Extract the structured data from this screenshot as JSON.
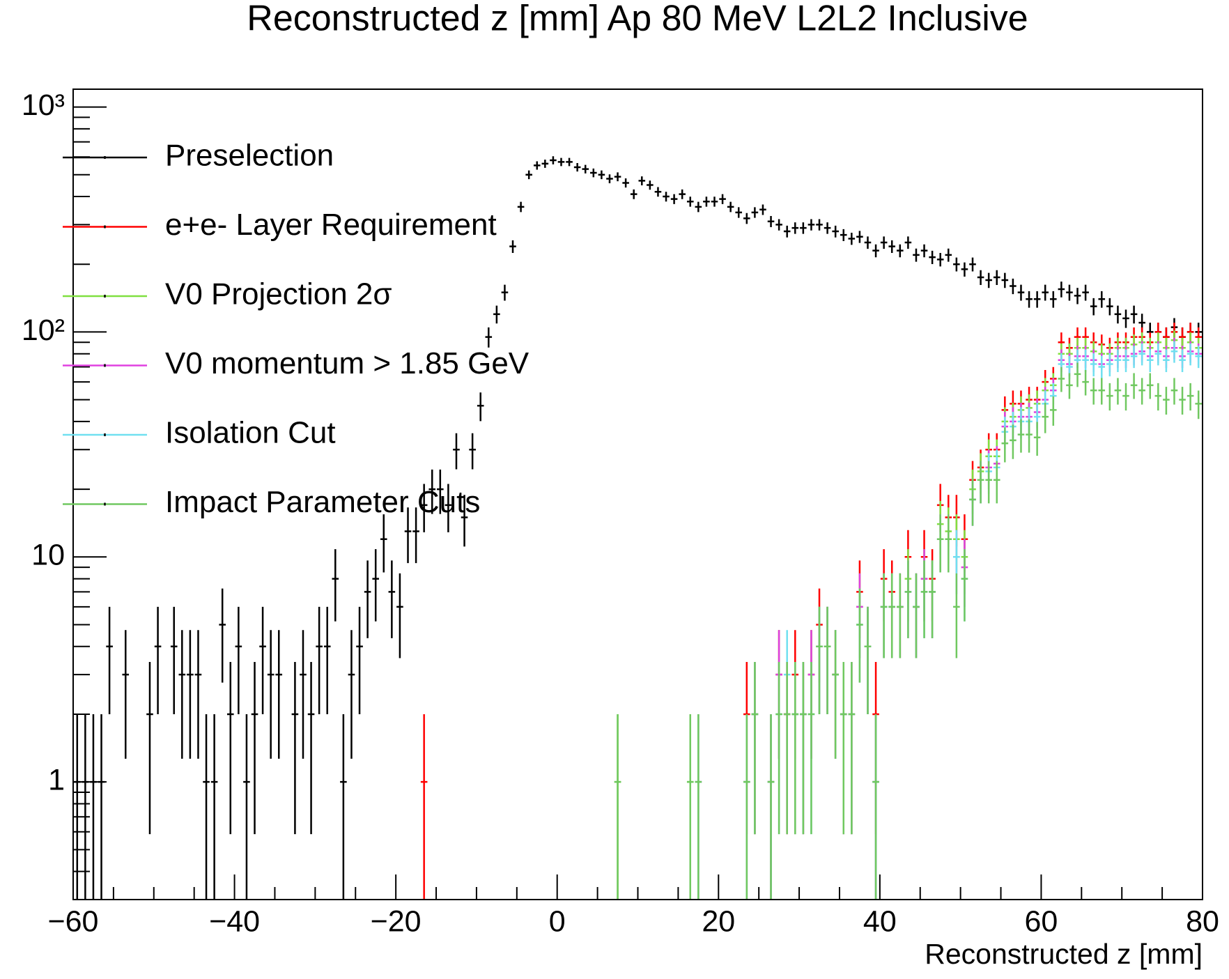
{
  "chart_data": {
    "type": "histogram",
    "title": "Reconstructed z [mm] Ap 80 MeV L2L2 Inclusive",
    "x_label": "Reconstructed z [mm]",
    "ylog": true,
    "legend": "top-left",
    "xlim": [
      -60,
      80
    ],
    "ylim": [
      0.3,
      1200
    ],
    "xticks": [
      {
        "value": -60,
        "label": "−60"
      },
      {
        "value": -40,
        "label": "−40"
      },
      {
        "value": -20,
        "label": "−20"
      },
      0,
      20,
      40,
      60,
      80
    ],
    "yticks": [
      1,
      10,
      {
        "value": 100,
        "label": "10²"
      },
      {
        "value": 1000,
        "label": "10³"
      }
    ],
    "bins": [
      -60,
      -59,
      -58,
      -57,
      -56,
      -55,
      -54,
      -53,
      -52,
      -51,
      -50,
      -49,
      -48,
      -47,
      -46,
      -45,
      -44,
      -43,
      -42,
      -41,
      -40,
      -39,
      -38,
      -37,
      -36,
      -35,
      -34,
      -33,
      -32,
      -31,
      -30,
      -29,
      -28,
      -27,
      -26,
      -25,
      -24,
      -23,
      -22,
      -21,
      -20,
      -19,
      -18,
      -17,
      -16,
      -15,
      -14,
      -13,
      -12,
      -11,
      -10,
      -9,
      -8,
      -7,
      -6,
      -5,
      -4,
      -3,
      -2,
      -1,
      0,
      1,
      2,
      3,
      4,
      5,
      6,
      7,
      8,
      9,
      10,
      11,
      12,
      13,
      14,
      15,
      16,
      17,
      18,
      19,
      20,
      21,
      22,
      23,
      24,
      25,
      26,
      27,
      28,
      29,
      30,
      31,
      32,
      33,
      34,
      35,
      36,
      37,
      38,
      39,
      40,
      41,
      42,
      43,
      44,
      45,
      46,
      47,
      48,
      49,
      50,
      51,
      52,
      53,
      54,
      55,
      56,
      57,
      58,
      59,
      60,
      61,
      62,
      63,
      64,
      65,
      66,
      67,
      68,
      69,
      70,
      71,
      72,
      73,
      74,
      75,
      76,
      77,
      78,
      79,
      80
    ],
    "series": [
      {
        "name": "Preselection",
        "color": "#000000",
        "values": [
          1,
          1,
          1,
          1,
          4,
          null,
          3,
          null,
          null,
          2,
          4,
          null,
          4,
          3,
          3,
          3,
          1,
          1,
          5,
          2,
          4,
          1,
          2,
          4,
          3,
          3,
          null,
          2,
          3,
          2,
          4,
          4,
          8,
          1,
          3,
          4,
          7,
          8,
          12,
          7,
          6,
          13,
          13,
          17,
          20,
          20,
          17,
          30,
          15,
          30,
          47,
          95,
          120,
          150,
          240,
          360,
          500,
          550,
          560,
          580,
          570,
          570,
          540,
          530,
          510,
          500,
          480,
          490,
          460,
          410,
          470,
          450,
          420,
          400,
          390,
          410,
          380,
          360,
          380,
          380,
          390,
          360,
          340,
          320,
          340,
          350,
          310,
          300,
          280,
          290,
          290,
          300,
          300,
          290,
          280,
          270,
          260,
          265,
          250,
          230,
          250,
          240,
          230,
          250,
          220,
          230,
          215,
          210,
          220,
          200,
          190,
          200,
          175,
          170,
          175,
          170,
          160,
          150,
          140,
          140,
          150,
          140,
          155,
          150,
          145,
          150,
          130,
          140,
          130,
          120,
          115,
          120,
          110,
          100,
          100,
          95,
          105,
          95,
          100,
          100
        ]
      },
      {
        "name": "e+e- Layer Requirement",
        "color": "#ff0000",
        "values": [
          null,
          null,
          null,
          null,
          null,
          null,
          null,
          null,
          null,
          null,
          null,
          null,
          null,
          null,
          null,
          null,
          null,
          null,
          null,
          null,
          null,
          null,
          null,
          null,
          null,
          null,
          null,
          null,
          null,
          null,
          null,
          null,
          null,
          null,
          null,
          null,
          null,
          null,
          null,
          null,
          null,
          null,
          null,
          1,
          null,
          null,
          null,
          null,
          null,
          null,
          null,
          null,
          null,
          null,
          null,
          null,
          null,
          null,
          null,
          null,
          null,
          null,
          null,
          null,
          null,
          null,
          null,
          null,
          null,
          null,
          null,
          null,
          null,
          null,
          null,
          null,
          null,
          null,
          null,
          null,
          null,
          null,
          null,
          2,
          2,
          null,
          1,
          3,
          2,
          3,
          2,
          3,
          5,
          4,
          3,
          2,
          2,
          7,
          4,
          2,
          8,
          7,
          6,
          10,
          6,
          10,
          8,
          17,
          15,
          15,
          12,
          22,
          25,
          30,
          30,
          45,
          48,
          48,
          50,
          50,
          60,
          62,
          90,
          85,
          95,
          95,
          90,
          88,
          85,
          90,
          90,
          95,
          95,
          90,
          100,
          95,
          100,
          95,
          100,
          95
        ]
      },
      {
        "name": "V0 Projection 2σ",
        "color": "#80e040",
        "values": [
          null,
          null,
          null,
          null,
          null,
          null,
          null,
          null,
          null,
          null,
          null,
          null,
          null,
          null,
          null,
          null,
          null,
          null,
          null,
          null,
          null,
          null,
          null,
          null,
          null,
          null,
          null,
          null,
          null,
          null,
          null,
          null,
          null,
          null,
          null,
          null,
          null,
          null,
          null,
          null,
          null,
          null,
          null,
          null,
          null,
          null,
          null,
          null,
          null,
          null,
          null,
          null,
          null,
          null,
          null,
          null,
          null,
          null,
          null,
          null,
          null,
          null,
          null,
          null,
          null,
          null,
          null,
          1,
          null,
          null,
          null,
          null,
          null,
          null,
          null,
          null,
          1,
          1,
          null,
          null,
          null,
          null,
          null,
          1,
          2,
          null,
          1,
          3,
          2,
          2,
          2,
          3,
          4,
          4,
          3,
          2,
          2,
          6,
          4,
          1,
          6,
          6,
          6,
          8,
          6,
          8,
          7,
          14,
          13,
          12,
          10,
          20,
          24,
          28,
          28,
          40,
          42,
          45,
          46,
          48,
          55,
          58,
          80,
          80,
          85,
          85,
          82,
          80,
          80,
          85,
          85,
          88,
          90,
          85,
          90,
          85,
          92,
          85,
          90,
          85
        ]
      },
      {
        "name": "V0 momentum > 1.85 GeV",
        "color": "#e040e0",
        "values": [
          null,
          null,
          null,
          null,
          null,
          null,
          null,
          null,
          null,
          null,
          null,
          null,
          null,
          null,
          null,
          null,
          null,
          null,
          null,
          null,
          null,
          null,
          null,
          null,
          null,
          null,
          null,
          null,
          null,
          null,
          null,
          null,
          null,
          null,
          null,
          null,
          null,
          null,
          null,
          null,
          null,
          null,
          null,
          null,
          null,
          null,
          null,
          null,
          null,
          null,
          null,
          null,
          null,
          null,
          null,
          null,
          null,
          null,
          null,
          null,
          null,
          null,
          null,
          null,
          null,
          null,
          null,
          null,
          null,
          null,
          null,
          null,
          null,
          null,
          null,
          null,
          null,
          1,
          null,
          null,
          null,
          null,
          null,
          1,
          2,
          null,
          1,
          3,
          2,
          2,
          2,
          3,
          4,
          4,
          3,
          2,
          2,
          6,
          4,
          1,
          6,
          6,
          6,
          7,
          6,
          8,
          7,
          12,
          12,
          10,
          9,
          18,
          22,
          25,
          26,
          38,
          40,
          42,
          42,
          44,
          50,
          55,
          75,
          72,
          78,
          78,
          75,
          72,
          75,
          78,
          78,
          80,
          82,
          78,
          82,
          78,
          85,
          78,
          82,
          80
        ]
      },
      {
        "name": "Isolation Cut",
        "color": "#70e0f0",
        "values": [
          null,
          null,
          null,
          null,
          null,
          null,
          null,
          null,
          null,
          null,
          null,
          null,
          null,
          null,
          null,
          null,
          null,
          null,
          null,
          null,
          null,
          null,
          null,
          null,
          null,
          null,
          null,
          null,
          null,
          null,
          null,
          null,
          null,
          null,
          null,
          null,
          null,
          null,
          null,
          null,
          null,
          null,
          null,
          null,
          null,
          null,
          null,
          null,
          null,
          null,
          null,
          null,
          null,
          null,
          null,
          null,
          null,
          null,
          null,
          null,
          null,
          null,
          null,
          null,
          null,
          null,
          null,
          null,
          null,
          null,
          null,
          null,
          null,
          null,
          null,
          null,
          null,
          1,
          null,
          null,
          null,
          null,
          null,
          1,
          2,
          null,
          1,
          2,
          3,
          2,
          2,
          2,
          4,
          4,
          3,
          2,
          2,
          5,
          4,
          1,
          6,
          6,
          6,
          7,
          6,
          7,
          7,
          12,
          12,
          10,
          8,
          18,
          22,
          24,
          25,
          36,
          38,
          40,
          40,
          42,
          48,
          52,
          72,
          70,
          75,
          75,
          72,
          70,
          72,
          75,
          75,
          78,
          80,
          75,
          80,
          75,
          82,
          75,
          80,
          78
        ]
      },
      {
        "name": "Impact Parameter Cuts",
        "color": "#70c860",
        "values": [
          null,
          null,
          null,
          null,
          null,
          null,
          null,
          null,
          null,
          null,
          null,
          null,
          null,
          null,
          null,
          null,
          null,
          null,
          null,
          null,
          null,
          null,
          null,
          null,
          null,
          null,
          null,
          null,
          null,
          null,
          null,
          null,
          null,
          null,
          null,
          null,
          null,
          null,
          null,
          null,
          null,
          null,
          null,
          null,
          null,
          null,
          null,
          null,
          null,
          null,
          null,
          null,
          null,
          null,
          null,
          null,
          null,
          null,
          null,
          null,
          null,
          null,
          null,
          null,
          null,
          null,
          null,
          1,
          null,
          null,
          null,
          null,
          null,
          null,
          null,
          null,
          1,
          1,
          null,
          null,
          null,
          null,
          null,
          1,
          2,
          null,
          1,
          2,
          2,
          2,
          2,
          2,
          4,
          4,
          3,
          2,
          2,
          5,
          4,
          1,
          6,
          6,
          6,
          7,
          6,
          7,
          7,
          12,
          12,
          6,
          8,
          18,
          22,
          22,
          22,
          32,
          33,
          35,
          35,
          34,
          42,
          45,
          62,
          58,
          65,
          60,
          55,
          55,
          52,
          55,
          52,
          58,
          55,
          58,
          52,
          50,
          55,
          50,
          52,
          48
        ]
      }
    ]
  }
}
